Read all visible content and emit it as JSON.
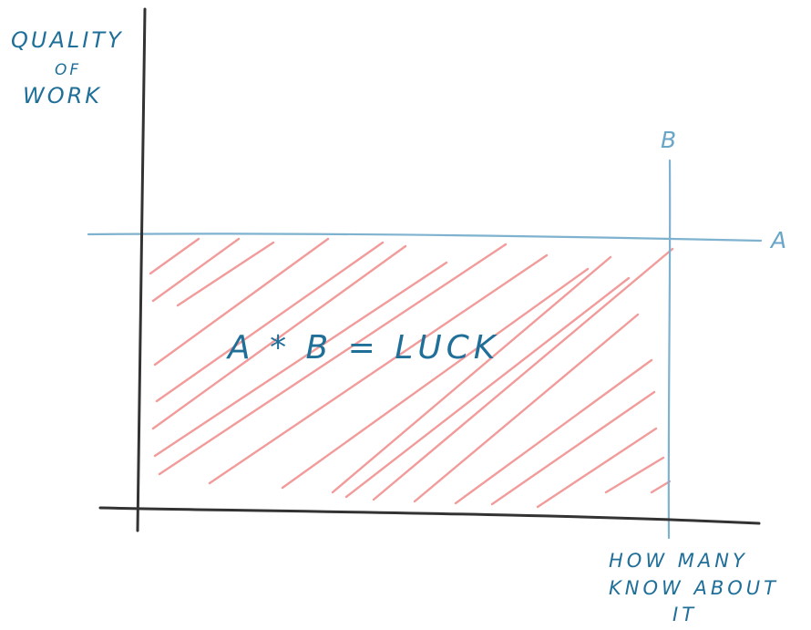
{
  "axes": {
    "y_label_line1": "QUALITY",
    "y_label_line2": "OF",
    "y_label_line3": "WORK",
    "x_label_line1": "HOW MANY",
    "x_label_line2": "KNOW ABOUT",
    "x_label_line3": "IT"
  },
  "lines": {
    "a_label": "A",
    "b_label": "B"
  },
  "formula": "A * B = LUCK",
  "colors": {
    "axis": "#333333",
    "guide_line": "#7fb2cf",
    "hatch": "#f08a8a",
    "text": "#1f6f99"
  }
}
